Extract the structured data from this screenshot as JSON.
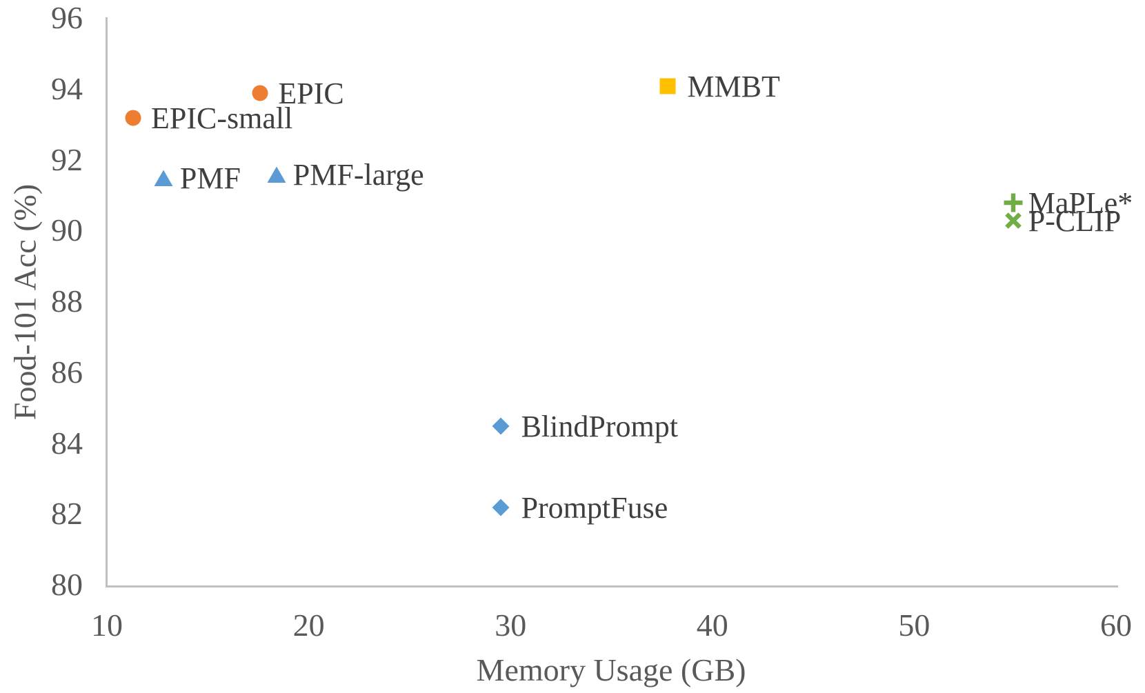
{
  "chart_data": {
    "type": "scatter",
    "title": "",
    "xlabel": "Memory Usage (GB)",
    "ylabel": "Food-101 Acc (%)",
    "xlim": [
      10,
      60
    ],
    "ylim": [
      80,
      96
    ],
    "x_ticks": [
      "10",
      "20",
      "30",
      "40",
      "50",
      "60"
    ],
    "y_ticks": [
      "80",
      "82",
      "84",
      "86",
      "88",
      "90",
      "92",
      "94",
      "96"
    ],
    "grid": false,
    "legend_position": "none (points labeled inline)",
    "points": [
      {
        "name": "EPIC",
        "x": 17.6,
        "y": 93.9,
        "marker": "circle",
        "color": "#ED7D31"
      },
      {
        "name": "EPIC-small",
        "x": 11.3,
        "y": 93.2,
        "marker": "circle",
        "color": "#ED7D31"
      },
      {
        "name": "PMF",
        "x": 12.8,
        "y": 91.5,
        "marker": "triangle",
        "color": "#5B9BD5"
      },
      {
        "name": "PMF-large",
        "x": 18.4,
        "y": 91.6,
        "marker": "triangle",
        "color": "#5B9BD5"
      },
      {
        "name": "MMBT",
        "x": 37.8,
        "y": 94.1,
        "marker": "square",
        "color": "#FFC000"
      },
      {
        "name": "MaPLe*",
        "x": 54.9,
        "y": 90.8,
        "marker": "plus",
        "color": "#70AD47"
      },
      {
        "name": "P-CLIP",
        "x": 54.9,
        "y": 90.3,
        "marker": "x",
        "color": "#70AD47"
      },
      {
        "name": "BlindPrompt",
        "x": 29.5,
        "y": 84.5,
        "marker": "diamond",
        "color": "#5B9BD5"
      },
      {
        "name": "PromptFuse",
        "x": 29.5,
        "y": 82.2,
        "marker": "diamond",
        "color": "#5B9BD5"
      }
    ],
    "colors": {
      "axis_line": "#BFBFBF",
      "tick_text": "#595959",
      "point_label_text": "#3F3F3F"
    }
  }
}
